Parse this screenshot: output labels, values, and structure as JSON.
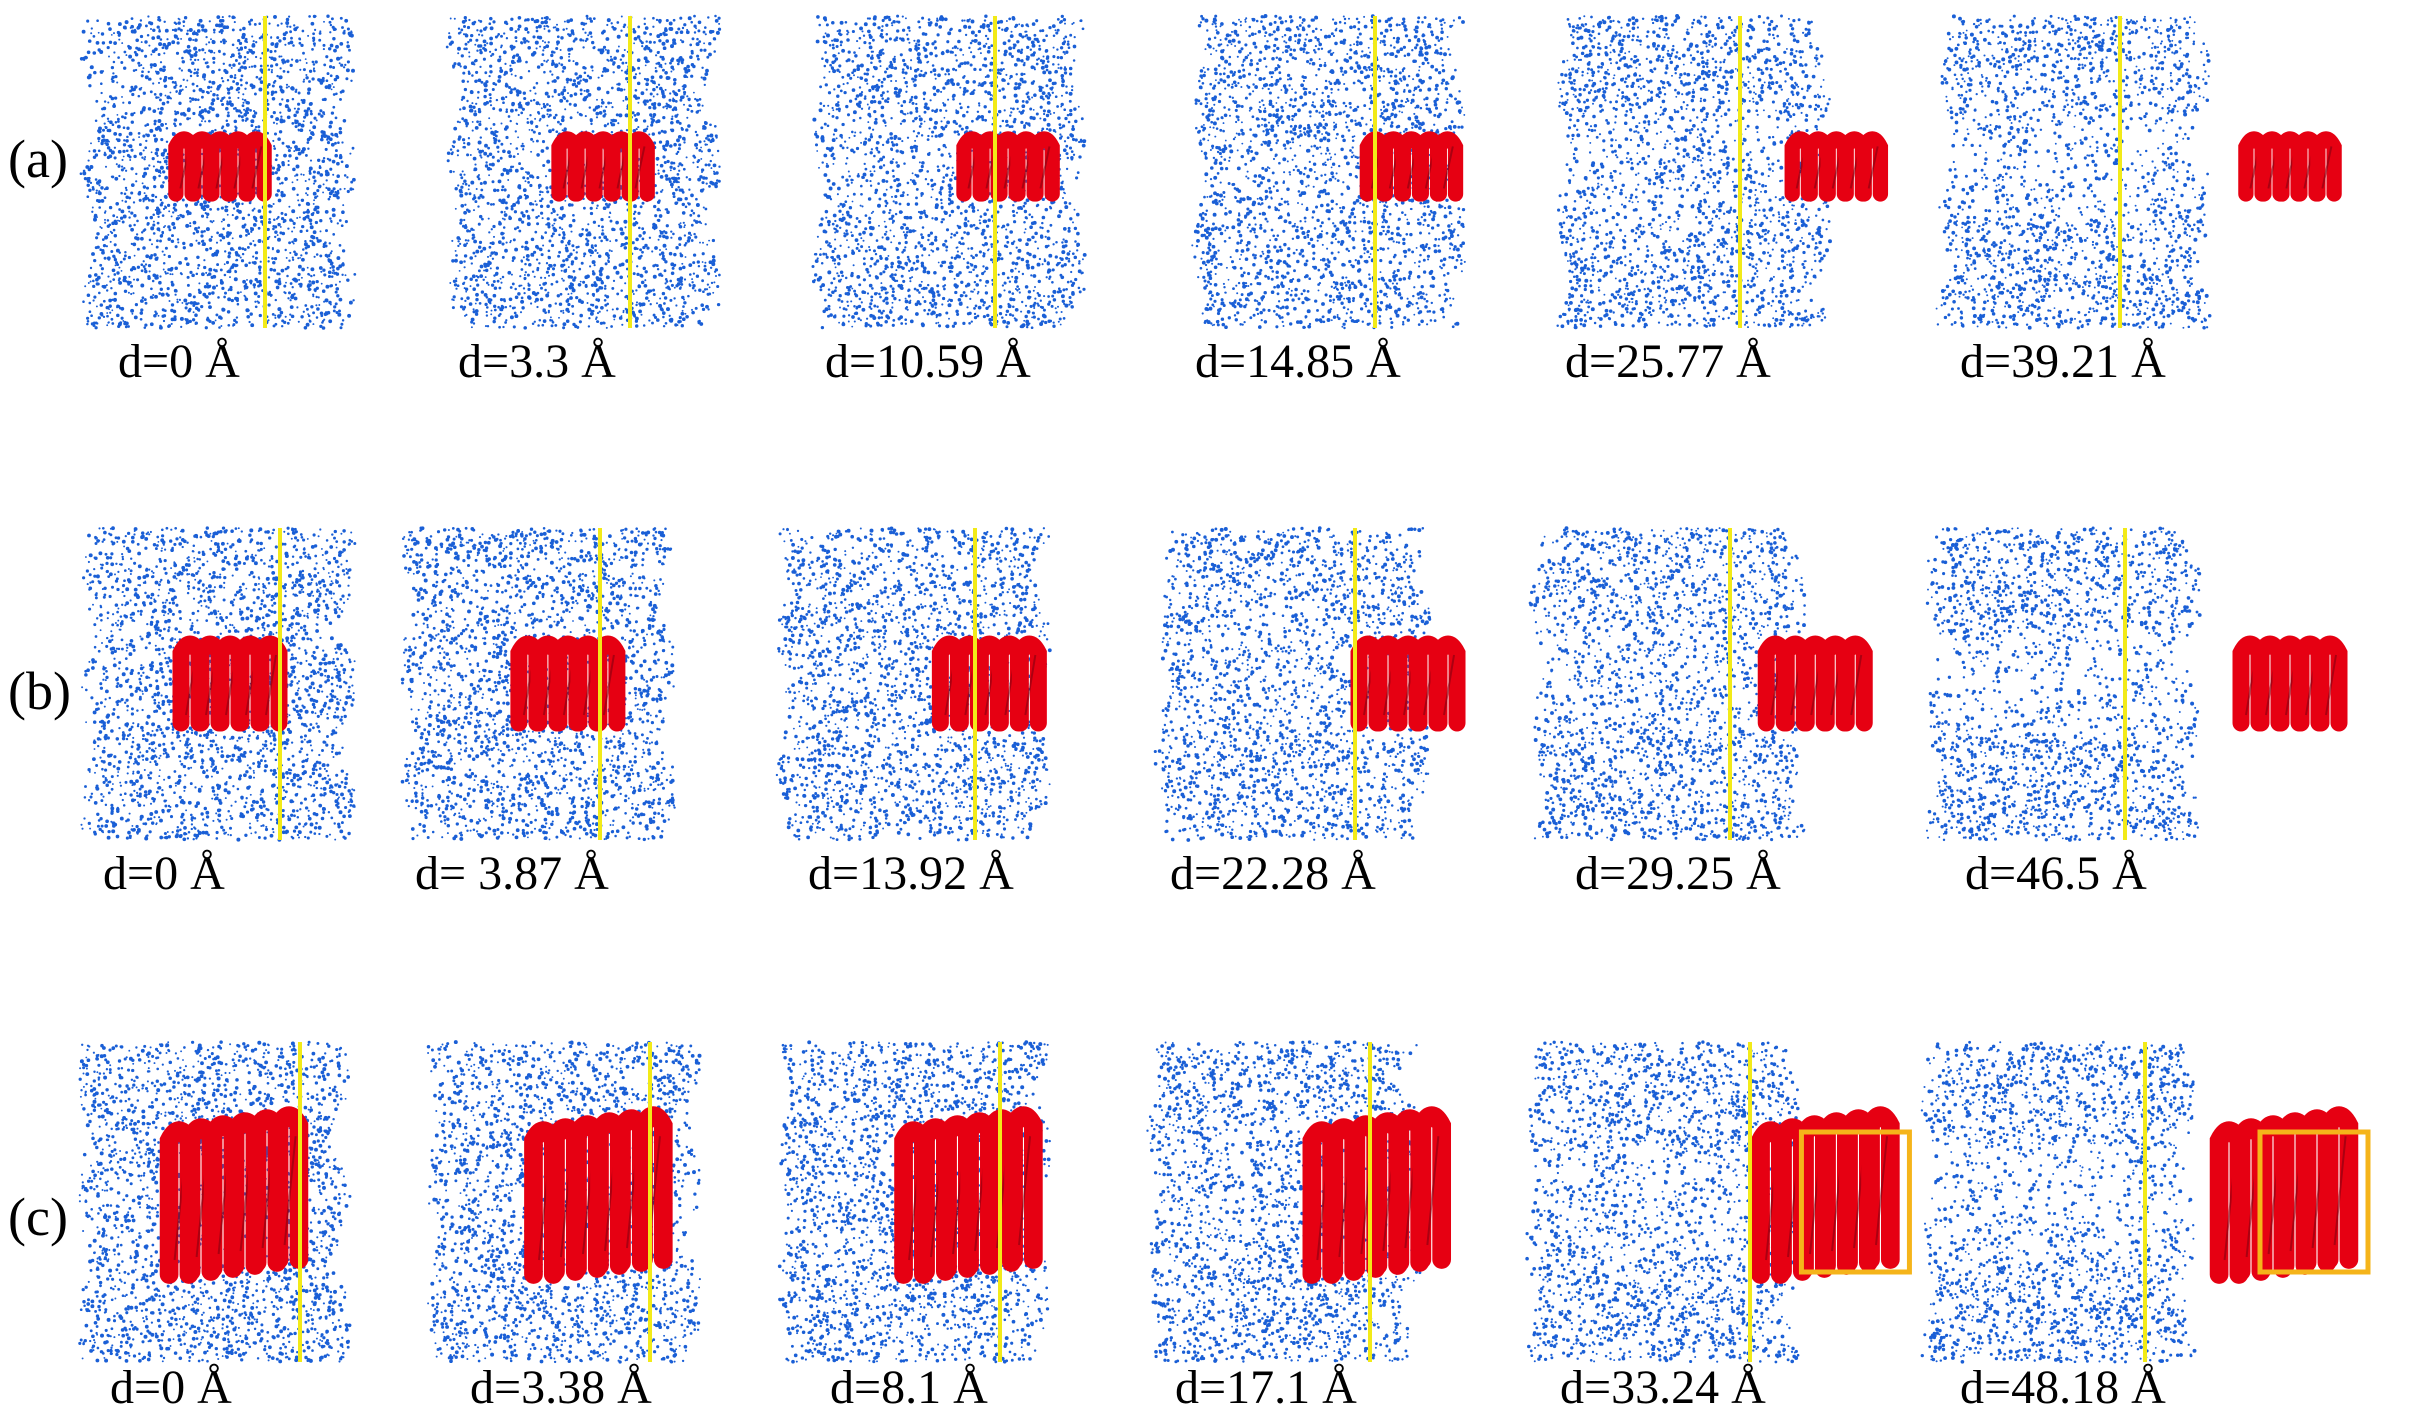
{
  "colors": {
    "solvent": "#1a5fd6",
    "helix": "#e60012",
    "helix_dark": "#7a0010",
    "interface_line": "#f2ea18",
    "highlight_box": "#f5b41a"
  },
  "rows": [
    {
      "label": "(a)",
      "frames": [
        {
          "d_label": "d=0 Å",
          "d": 0
        },
        {
          "d_label": "d=3.3 Å",
          "d": 3.3
        },
        {
          "d_label": "d=10.59 Å",
          "d": 10.59
        },
        {
          "d_label": "d=14.85 Å",
          "d": 14.85
        },
        {
          "d_label": "d=25.77 Å",
          "d": 25.77
        },
        {
          "d_label": "d=39.21 Å",
          "d": 39.21
        }
      ]
    },
    {
      "label": "(b)",
      "frames": [
        {
          "d_label": "d=0 Å",
          "d": 0
        },
        {
          "d_label": "d= 3.87 Å",
          "d": 3.87
        },
        {
          "d_label": "d=13.92 Å",
          "d": 13.92
        },
        {
          "d_label": "d=22.28 Å",
          "d": 22.28
        },
        {
          "d_label": "d=29.25 Å",
          "d": 29.25
        },
        {
          "d_label": "d=46.5 Å",
          "d": 46.5
        }
      ]
    },
    {
      "label": "(c)",
      "frames": [
        {
          "d_label": "d=0 Å",
          "d": 0,
          "highlight": false
        },
        {
          "d_label": "d=3.38 Å",
          "d": 3.38,
          "highlight": false
        },
        {
          "d_label": "d=8.1 Å",
          "d": 8.1,
          "highlight": false
        },
        {
          "d_label": "d=17.1 Å",
          "d": 17.1,
          "highlight": false
        },
        {
          "d_label": "d=33.24 Å",
          "d": 33.24,
          "highlight": true
        },
        {
          "d_label": "d=48.18 Å",
          "d": 48.18,
          "highlight": true
        }
      ]
    }
  ]
}
